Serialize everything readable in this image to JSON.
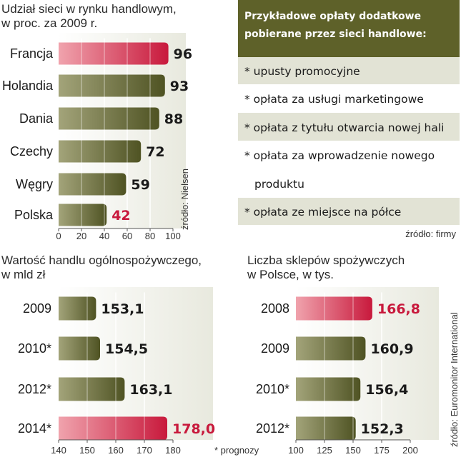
{
  "colors": {
    "olive_light": "#a3a47a",
    "olive_dark": "#4f5323",
    "red_light": "#f0a3ad",
    "red_dark": "#c8193c",
    "highlight_text": "#c8193c",
    "box_header": "#5e6129",
    "box_band": "#e2e3d5"
  },
  "chart_data": [
    {
      "id": "market_share",
      "type": "bar",
      "orientation": "horizontal",
      "title_lines": [
        "Udział sieci w rynku handlowym,",
        "w proc. za 2009 r."
      ],
      "categories": [
        "Francja",
        "Holandia",
        "Dania",
        "Czechy",
        "Węgry",
        "Polska"
      ],
      "values": [
        96,
        93,
        88,
        72,
        59,
        42
      ],
      "value_labels": [
        "96",
        "93",
        "88",
        "72",
        "59",
        "42"
      ],
      "highlight": [
        "Francja"
      ],
      "highlight_label": [
        "Polska"
      ],
      "xlim": [
        0,
        100
      ],
      "ticks": [
        0,
        20,
        40,
        60,
        80,
        100
      ],
      "tick_labels": [
        "0",
        "20",
        "40",
        "60",
        "80",
        "100"
      ],
      "source": "źródło: Nielsen"
    },
    {
      "id": "retail_value",
      "type": "bar",
      "orientation": "horizontal",
      "title_lines": [
        "Wartość handlu ogólnospożywczego,",
        "w mld zł"
      ],
      "categories": [
        "2009",
        "2010*",
        "2012*",
        "2014*"
      ],
      "values": [
        153.1,
        154.5,
        163.1,
        178.0
      ],
      "value_labels": [
        "153,1",
        "154,5",
        "163,1",
        "178,0"
      ],
      "highlight": [
        "2014*"
      ],
      "highlight_label": [
        "2014*"
      ],
      "xlim": [
        140,
        180
      ],
      "ticks": [
        140,
        150,
        160,
        170,
        180
      ],
      "tick_labels": [
        "140",
        "150",
        "160",
        "170",
        "180"
      ],
      "footnote": "* prognozy"
    },
    {
      "id": "store_count",
      "type": "bar",
      "orientation": "horizontal",
      "title_lines": [
        "Liczba sklepów spożywczych",
        "w Polsce, w tys."
      ],
      "categories": [
        "2008",
        "2009",
        "2010*",
        "2012*"
      ],
      "values": [
        166.8,
        160.9,
        156.4,
        152.3
      ],
      "value_labels": [
        "166,8",
        "160,9",
        "156,4",
        "152,3"
      ],
      "highlight": [
        "2008"
      ],
      "highlight_label": [
        "2008"
      ],
      "xlim": [
        100,
        200
      ],
      "ticks": [
        100,
        125,
        150,
        175,
        200
      ],
      "tick_labels": [
        "100",
        "125",
        "150",
        "175",
        "200"
      ],
      "source": "źródło: Euromonitor International"
    }
  ],
  "fees_box": {
    "title_lines": [
      "Przykładowe opłaty dodatkowe",
      "pobierane przez sieci handlowe:"
    ],
    "items": [
      "* upusty promocyjne",
      "* opłata za usługi marketingowe",
      "* opłata z tytułu otwarcia nowej hali",
      "* opłata za wprowadzenie nowego",
      "produktu",
      "* opłata ze miejsce na półce"
    ],
    "source": "źródło: firmy"
  }
}
